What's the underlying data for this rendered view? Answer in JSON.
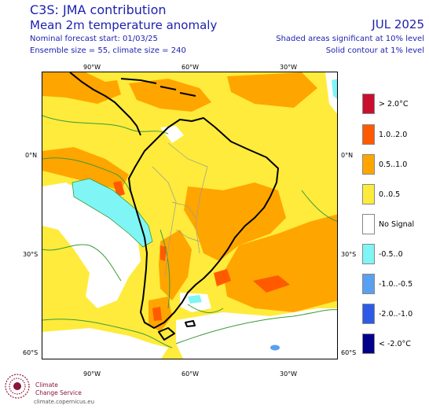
{
  "header": {
    "title_line1": "C3S: JMA contribution",
    "title_line2": "Mean 2m temperature anomaly",
    "forecast_start": "Nominal forecast start: 01/03/25",
    "ensemble_info": "Ensemble size = 55, climate size = 240",
    "valid_month": "JUL 2025",
    "shading_note": "Shaded areas significant at 10% level",
    "contour_note": "Solid contour at 1% level"
  },
  "axes": {
    "lon_ticks_top": [
      "90°W",
      "60°W",
      "30°W"
    ],
    "lon_ticks_bottom": [
      "90°W",
      "60°W",
      "30°W"
    ],
    "lat_ticks_left": [
      "0°N",
      "30°S",
      "60°S"
    ],
    "lat_ticks_right": [
      "0°N",
      "30°S",
      "60°S"
    ]
  },
  "legend": [
    {
      "label": "> 2.0°C",
      "color": "#c8102e"
    },
    {
      "label": "1.0..2.0",
      "color": "#ff5a00"
    },
    {
      "label": "0.5..1.0",
      "color": "#ffa500"
    },
    {
      "label": "0..0.5",
      "color": "#ffeb3b"
    },
    {
      "label": "No Signal",
      "color": "#ffffff"
    },
    {
      "label": "-0.5..0",
      "color": "#7ff5f5"
    },
    {
      "label": "-1.0..-0.5",
      "color": "#5aa0f0"
    },
    {
      "label": "-2.0..-1.0",
      "color": "#2d5ae6"
    },
    {
      "label": "< -2.0°C",
      "color": "#00008b"
    }
  ],
  "logo": {
    "line1": "Climate",
    "line2": "Change Service",
    "url": "climate.copernicus.eu"
  }
}
